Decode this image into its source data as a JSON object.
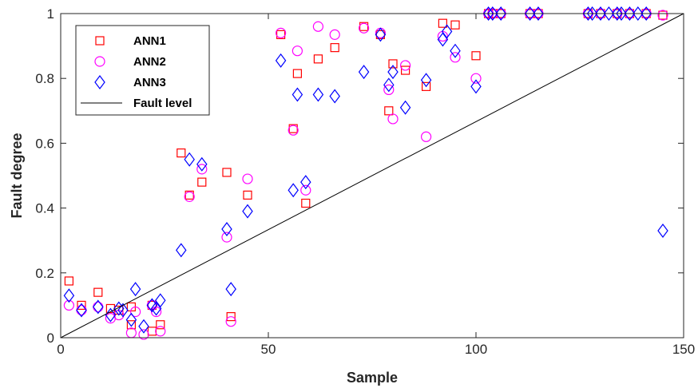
{
  "chart_data": {
    "type": "scatter",
    "title": "",
    "xlabel": "Sample",
    "ylabel": "Fault degree",
    "xlim": [
      0,
      150
    ],
    "ylim": [
      0,
      1
    ],
    "xticks": [
      "0",
      "50",
      "100",
      "150"
    ],
    "yticks": [
      "0",
      "0.2",
      "0.4",
      "0.6",
      "0.8",
      "1"
    ],
    "grid": false,
    "legend_position": "top-left",
    "series": [
      {
        "name": "ANN1",
        "marker": "square",
        "color": "#ff0000",
        "points": [
          [
            2,
            0.175
          ],
          [
            5,
            0.1
          ],
          [
            9,
            0.14
          ],
          [
            12,
            0.09
          ],
          [
            14,
            0.085
          ],
          [
            17,
            0.04
          ],
          [
            17,
            0.095
          ],
          [
            22,
            0.1
          ],
          [
            22,
            0.02
          ],
          [
            24,
            0.04
          ],
          [
            29,
            0.57
          ],
          [
            31,
            0.44
          ],
          [
            34,
            0.48
          ],
          [
            40,
            0.51
          ],
          [
            41,
            0.065
          ],
          [
            45,
            0.44
          ],
          [
            53,
            0.935
          ],
          [
            56,
            0.645
          ],
          [
            57,
            0.815
          ],
          [
            59,
            0.415
          ],
          [
            62,
            0.86
          ],
          [
            66,
            0.895
          ],
          [
            73,
            0.96
          ],
          [
            77,
            0.935
          ],
          [
            79,
            0.7
          ],
          [
            80,
            0.845
          ],
          [
            83,
            0.825
          ],
          [
            88,
            0.775
          ],
          [
            92,
            0.97
          ],
          [
            95,
            0.965
          ],
          [
            100,
            0.87
          ],
          [
            103,
            1.0
          ],
          [
            104,
            1.0
          ],
          [
            106,
            1.0
          ],
          [
            113,
            1.0
          ],
          [
            115,
            1.0
          ],
          [
            127,
            1.0
          ],
          [
            130,
            1.0
          ],
          [
            134,
            1.0
          ],
          [
            137,
            1.0
          ],
          [
            141,
            1.0
          ],
          [
            145,
            0.995
          ]
        ]
      },
      {
        "name": "ANN2",
        "marker": "circle",
        "color": "#ff00ff",
        "points": [
          [
            2,
            0.1
          ],
          [
            5,
            0.085
          ],
          [
            9,
            0.095
          ],
          [
            12,
            0.06
          ],
          [
            14,
            0.07
          ],
          [
            17,
            0.015
          ],
          [
            18,
            0.08
          ],
          [
            20,
            0.01
          ],
          [
            22,
            0.1
          ],
          [
            23,
            0.08
          ],
          [
            24,
            0.02
          ],
          [
            31,
            0.435
          ],
          [
            34,
            0.52
          ],
          [
            40,
            0.31
          ],
          [
            41,
            0.05
          ],
          [
            45,
            0.49
          ],
          [
            53,
            0.94
          ],
          [
            56,
            0.64
          ],
          [
            57,
            0.885
          ],
          [
            59,
            0.455
          ],
          [
            62,
            0.96
          ],
          [
            66,
            0.935
          ],
          [
            73,
            0.955
          ],
          [
            77,
            0.94
          ],
          [
            79,
            0.765
          ],
          [
            80,
            0.675
          ],
          [
            83,
            0.84
          ],
          [
            88,
            0.62
          ],
          [
            92,
            0.93
          ],
          [
            95,
            0.865
          ],
          [
            100,
            0.8
          ],
          [
            103,
            1.0
          ],
          [
            104,
            1.0
          ],
          [
            106,
            1.0
          ],
          [
            113,
            1.0
          ],
          [
            115,
            1.0
          ],
          [
            127,
            1.0
          ],
          [
            130,
            1.0
          ],
          [
            134,
            1.0
          ],
          [
            137,
            1.0
          ],
          [
            141,
            1.0
          ],
          [
            145,
            0.995
          ]
        ]
      },
      {
        "name": "ANN3",
        "marker": "diamond",
        "color": "#0000ff",
        "points": [
          [
            2,
            0.13
          ],
          [
            5,
            0.085
          ],
          [
            9,
            0.095
          ],
          [
            12,
            0.07
          ],
          [
            14,
            0.09
          ],
          [
            15,
            0.085
          ],
          [
            17,
            0.055
          ],
          [
            18,
            0.15
          ],
          [
            20,
            0.035
          ],
          [
            22,
            0.1
          ],
          [
            23,
            0.09
          ],
          [
            24,
            0.115
          ],
          [
            29,
            0.27
          ],
          [
            31,
            0.55
          ],
          [
            34,
            0.535
          ],
          [
            40,
            0.335
          ],
          [
            41,
            0.15
          ],
          [
            45,
            0.39
          ],
          [
            53,
            0.855
          ],
          [
            56,
            0.455
          ],
          [
            57,
            0.75
          ],
          [
            59,
            0.48
          ],
          [
            62,
            0.75
          ],
          [
            66,
            0.745
          ],
          [
            73,
            0.82
          ],
          [
            77,
            0.935
          ],
          [
            79,
            0.78
          ],
          [
            80,
            0.82
          ],
          [
            83,
            0.71
          ],
          [
            88,
            0.795
          ],
          [
            92,
            0.92
          ],
          [
            93,
            0.945
          ],
          [
            95,
            0.885
          ],
          [
            100,
            0.775
          ],
          [
            103,
            1.0
          ],
          [
            104,
            1.0
          ],
          [
            106,
            1.0
          ],
          [
            113,
            1.0
          ],
          [
            115,
            1.0
          ],
          [
            127,
            1.0
          ],
          [
            128,
            1.0
          ],
          [
            130,
            1.0
          ],
          [
            132,
            1.0
          ],
          [
            134,
            1.0
          ],
          [
            135,
            1.0
          ],
          [
            137,
            1.0
          ],
          [
            139,
            1.0
          ],
          [
            141,
            1.0
          ],
          [
            145,
            0.33
          ]
        ]
      },
      {
        "name": "Fault level",
        "marker": "line",
        "color": "#000000",
        "points": [
          [
            0,
            0
          ],
          [
            150,
            1
          ]
        ]
      }
    ]
  }
}
